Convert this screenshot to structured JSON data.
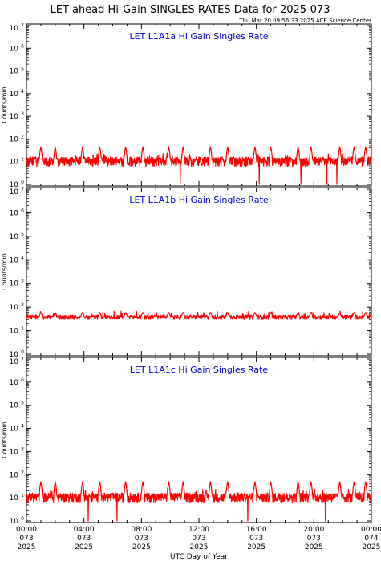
{
  "title": "LET ahead Hi-Gain SINGLES RATES Data for 2025-073",
  "timestamp": "Thu Mar 20 09:56:33 2025 ACE Science Center",
  "colors": {
    "trace": "#ff0000",
    "panel_title": "#0000cc",
    "axis": "#000000"
  },
  "chart_data": [
    {
      "type": "line",
      "title": "LET L1A1a Hi Gain Singles Rate",
      "ylabel": "Counts/min",
      "xlabel": "",
      "yscale": "log",
      "ylim": [
        1,
        10000000
      ],
      "xlim": [
        0,
        24
      ],
      "x_units": "hours UTC, day 073",
      "baseline": 10,
      "noise_spread": [
        6,
        16
      ],
      "spikes_x": [
        1.0,
        2.0,
        3.9,
        5.1,
        6.9,
        8.1,
        9.9,
        10.9,
        12.8,
        14.0,
        15.9,
        17.0,
        18.9,
        19.8,
        21.8,
        22.8,
        23.6
      ],
      "spike_peak": 45,
      "dips_x": [
        10.7,
        16.2,
        19.1,
        20.9,
        21.6
      ],
      "dip_min": 1
    },
    {
      "type": "line",
      "title": "LET L1A1b Hi Gain Singles Rate",
      "ylabel": "Counts/min",
      "xlabel": "",
      "yscale": "log",
      "ylim": [
        1,
        10000000
      ],
      "xlim": [
        0,
        24
      ],
      "x_units": "hours UTC, day 073",
      "baseline": 38,
      "noise_spread": [
        31,
        46
      ],
      "spikes_x": [
        1.0,
        2.0,
        3.9,
        5.1,
        6.9,
        8.1,
        9.9,
        10.9,
        12.8,
        14.0,
        15.9,
        17.0,
        18.9,
        19.8,
        21.8,
        22.8,
        23.6
      ],
      "spike_peak": 60,
      "dips_x": [],
      "dip_min": 25
    },
    {
      "type": "line",
      "title": "LET L1A1c Hi Gain Singles Rate",
      "ylabel": "Counts/min",
      "xlabel": "UTC Day of Year",
      "yscale": "log",
      "ylim": [
        1,
        10000000
      ],
      "xlim": [
        0,
        24
      ],
      "x_units": "hours UTC, day 073",
      "baseline": 10,
      "noise_spread": [
        6,
        16
      ],
      "spikes_x": [
        1.0,
        2.0,
        3.9,
        5.1,
        6.9,
        8.1,
        9.9,
        10.9,
        12.8,
        14.0,
        15.9,
        17.0,
        18.9,
        19.8,
        21.8,
        22.8,
        23.6
      ],
      "spike_peak": 50,
      "dips_x": [
        4.3,
        6.3,
        15.4,
        20.8
      ],
      "dip_min": 1
    }
  ],
  "y_ticks": [
    {
      "base": "10",
      "exp": "0"
    },
    {
      "base": "10",
      "exp": "1"
    },
    {
      "base": "10",
      "exp": "2"
    },
    {
      "base": "10",
      "exp": "3"
    },
    {
      "base": "10",
      "exp": "4"
    },
    {
      "base": "10",
      "exp": "5"
    },
    {
      "base": "10",
      "exp": "6"
    },
    {
      "base": "10",
      "exp": "7"
    }
  ],
  "x_ticks": [
    {
      "x": 0,
      "lines": [
        "00:00",
        "073",
        "2025"
      ]
    },
    {
      "x": 4,
      "lines": [
        "04:00",
        "073",
        "2025"
      ]
    },
    {
      "x": 8,
      "lines": [
        "08:00",
        "073",
        "2025"
      ]
    },
    {
      "x": 12,
      "lines": [
        "12:00",
        "073",
        "2025"
      ]
    },
    {
      "x": 16,
      "lines": [
        "16:00",
        "073",
        "2025"
      ]
    },
    {
      "x": 20,
      "lines": [
        "20:00",
        "073",
        "2025"
      ]
    },
    {
      "x": 24,
      "lines": [
        "00:00",
        "074",
        "2025"
      ]
    }
  ]
}
